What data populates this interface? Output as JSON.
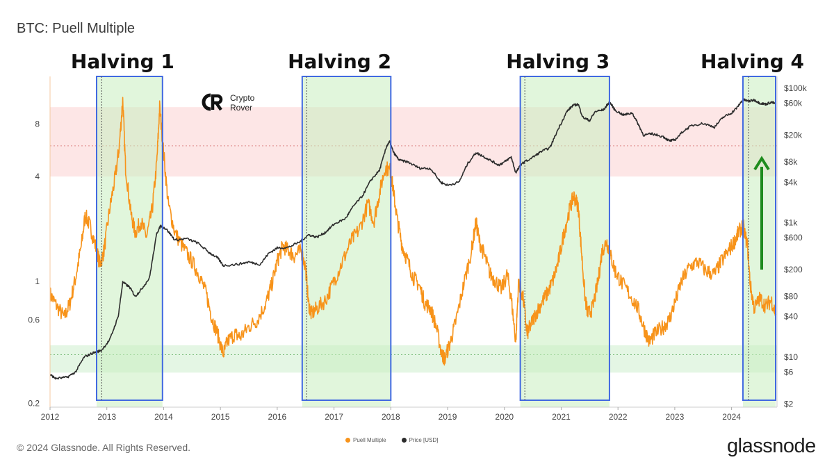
{
  "header": {
    "title": "BTC: Puell Multiple"
  },
  "footer": {
    "copyright": "© 2024 Glassnode. All Rights Reserved.",
    "brand": "glassnode"
  },
  "watermark": {
    "line1": "Crypto",
    "line2": "Rover"
  },
  "colors": {
    "puell": "#f7931a",
    "price": "#2b2b2b",
    "halving_box": "#4169e1",
    "green_zone": "#dff5df",
    "red_zone": "#fde2e2",
    "arrow": "#1e8c1e"
  },
  "chart_data": {
    "type": "line",
    "title": "BTC: Puell Multiple",
    "x_ticks": [
      "2012",
      "2013",
      "2014",
      "2015",
      "2016",
      "2017",
      "2018",
      "2019",
      "2020",
      "2021",
      "2022",
      "2023",
      "2024"
    ],
    "y_left_scale": "log",
    "y_left_ticks": [
      "0.2",
      "0.6",
      "1",
      "4",
      "8"
    ],
    "y_left_tick_values": [
      0.2,
      0.6,
      1,
      4,
      8
    ],
    "y_left_range": [
      0.19,
      15
    ],
    "y_right_scale": "log",
    "y_right_ticks": [
      "$2",
      "$6",
      "$10",
      "$40",
      "$80",
      "$200",
      "$600",
      "$1k",
      "$4k",
      "$8k",
      "$20k",
      "$60k",
      "$100k"
    ],
    "y_right_tick_values": [
      2,
      6,
      10,
      40,
      80,
      200,
      600,
      1000,
      4000,
      8000,
      20000,
      60000,
      100000
    ],
    "y_right_range": [
      1.8,
      150000
    ],
    "x_range": [
      2012.0,
      2024.8
    ],
    "legend": [
      "Puell Multiple",
      "Price [USD]"
    ],
    "legend_position": "bottom-center",
    "bands": [
      {
        "zone": "red",
        "from": 4,
        "to": 10,
        "midline": 6
      },
      {
        "zone": "green",
        "from": 0.3,
        "to": 0.43,
        "midline": 0.38
      }
    ],
    "halvings": [
      {
        "label": "Halving 1",
        "date": 2012.91,
        "box": [
          2012.82,
          2013.98
        ]
      },
      {
        "label": "Halving 2",
        "date": 2016.52,
        "box": [
          2016.44,
          2018.0
        ]
      },
      {
        "label": "Halving 3",
        "date": 2020.36,
        "box": [
          2020.28,
          2021.85
        ]
      },
      {
        "label": "Halving 4",
        "date": 2024.3,
        "box": [
          2024.2,
          2024.8
        ]
      }
    ],
    "series": [
      {
        "name": "Puell Multiple",
        "axis": "left",
        "points": [
          [
            2012.0,
            0.85
          ],
          [
            2012.12,
            0.72
          ],
          [
            2012.25,
            0.62
          ],
          [
            2012.35,
            0.75
          ],
          [
            2012.45,
            1.05
          ],
          [
            2012.55,
            1.6
          ],
          [
            2012.62,
            2.4
          ],
          [
            2012.7,
            2.1
          ],
          [
            2012.8,
            1.6
          ],
          [
            2012.88,
            1.25
          ],
          [
            2012.95,
            1.5
          ],
          [
            2013.05,
            2.6
          ],
          [
            2013.15,
            4.0
          ],
          [
            2013.22,
            6.0
          ],
          [
            2013.28,
            11.0
          ],
          [
            2013.33,
            4.5
          ],
          [
            2013.42,
            2.5
          ],
          [
            2013.5,
            1.9
          ],
          [
            2013.6,
            2.2
          ],
          [
            2013.7,
            1.8
          ],
          [
            2013.8,
            2.6
          ],
          [
            2013.88,
            4.8
          ],
          [
            2013.93,
            10.0
          ],
          [
            2014.0,
            5.5
          ],
          [
            2014.08,
            2.8
          ],
          [
            2014.2,
            1.9
          ],
          [
            2014.35,
            1.55
          ],
          [
            2014.5,
            1.3
          ],
          [
            2014.62,
            1.1
          ],
          [
            2014.75,
            0.85
          ],
          [
            2014.85,
            0.62
          ],
          [
            2014.95,
            0.5
          ],
          [
            2015.05,
            0.38
          ],
          [
            2015.12,
            0.45
          ],
          [
            2015.25,
            0.5
          ],
          [
            2015.35,
            0.48
          ],
          [
            2015.5,
            0.55
          ],
          [
            2015.65,
            0.6
          ],
          [
            2015.8,
            0.75
          ],
          [
            2015.9,
            0.95
          ],
          [
            2016.0,
            1.3
          ],
          [
            2016.1,
            1.6
          ],
          [
            2016.2,
            1.5
          ],
          [
            2016.3,
            1.4
          ],
          [
            2016.42,
            1.5
          ],
          [
            2016.5,
            1.2
          ],
          [
            2016.55,
            0.75
          ],
          [
            2016.6,
            0.65
          ],
          [
            2016.7,
            0.7
          ],
          [
            2016.85,
            0.78
          ],
          [
            2017.0,
            1.0
          ],
          [
            2017.15,
            1.3
          ],
          [
            2017.3,
            1.7
          ],
          [
            2017.45,
            2.0
          ],
          [
            2017.6,
            2.8
          ],
          [
            2017.7,
            2.2
          ],
          [
            2017.8,
            3.2
          ],
          [
            2017.9,
            4.5
          ],
          [
            2018.0,
            4.3
          ],
          [
            2018.05,
            3.2
          ],
          [
            2018.12,
            2.2
          ],
          [
            2018.2,
            1.6
          ],
          [
            2018.3,
            1.3
          ],
          [
            2018.4,
            1.05
          ],
          [
            2018.5,
            0.95
          ],
          [
            2018.6,
            0.75
          ],
          [
            2018.7,
            0.7
          ],
          [
            2018.8,
            0.55
          ],
          [
            2018.9,
            0.38
          ],
          [
            2018.95,
            0.36
          ],
          [
            2019.05,
            0.45
          ],
          [
            2019.15,
            0.6
          ],
          [
            2019.28,
            0.95
          ],
          [
            2019.42,
            1.5
          ],
          [
            2019.5,
            2.2
          ],
          [
            2019.56,
            1.7
          ],
          [
            2019.65,
            1.4
          ],
          [
            2019.75,
            1.1
          ],
          [
            2019.85,
            1.0
          ],
          [
            2019.95,
            0.9
          ],
          [
            2020.05,
            1.1
          ],
          [
            2020.12,
            0.8
          ],
          [
            2020.2,
            0.45
          ],
          [
            2020.25,
            1.0
          ],
          [
            2020.33,
            0.8
          ],
          [
            2020.4,
            0.5
          ],
          [
            2020.45,
            0.55
          ],
          [
            2020.55,
            0.65
          ],
          [
            2020.65,
            0.75
          ],
          [
            2020.75,
            0.85
          ],
          [
            2020.85,
            1.0
          ],
          [
            2020.95,
            1.3
          ],
          [
            2021.05,
            1.9
          ],
          [
            2021.15,
            2.6
          ],
          [
            2021.22,
            3.1
          ],
          [
            2021.3,
            2.7
          ],
          [
            2021.35,
            1.6
          ],
          [
            2021.42,
            0.8
          ],
          [
            2021.47,
            0.65
          ],
          [
            2021.55,
            0.7
          ],
          [
            2021.65,
            1.0
          ],
          [
            2021.72,
            1.5
          ],
          [
            2021.8,
            1.7
          ],
          [
            2021.87,
            1.4
          ],
          [
            2021.95,
            1.15
          ],
          [
            2022.05,
            1.0
          ],
          [
            2022.2,
            0.85
          ],
          [
            2022.35,
            0.7
          ],
          [
            2022.45,
            0.55
          ],
          [
            2022.55,
            0.45
          ],
          [
            2022.65,
            0.5
          ],
          [
            2022.8,
            0.55
          ],
          [
            2022.9,
            0.6
          ],
          [
            2023.0,
            0.75
          ],
          [
            2023.12,
            1.0
          ],
          [
            2023.25,
            1.2
          ],
          [
            2023.4,
            1.3
          ],
          [
            2023.55,
            1.15
          ],
          [
            2023.7,
            1.1
          ],
          [
            2023.82,
            1.3
          ],
          [
            2023.95,
            1.5
          ],
          [
            2024.05,
            1.7
          ],
          [
            2024.12,
            1.9
          ],
          [
            2024.2,
            2.1
          ],
          [
            2024.28,
            1.6
          ],
          [
            2024.33,
            0.95
          ],
          [
            2024.4,
            0.7
          ],
          [
            2024.5,
            0.8
          ],
          [
            2024.6,
            0.72
          ],
          [
            2024.7,
            0.78
          ],
          [
            2024.78,
            0.65
          ]
        ]
      },
      {
        "name": "Price [USD]",
        "axis": "right",
        "points": [
          [
            2012.0,
            5.5
          ],
          [
            2012.1,
            4.8
          ],
          [
            2012.3,
            5.0
          ],
          [
            2012.45,
            6.0
          ],
          [
            2012.6,
            10.0
          ],
          [
            2012.75,
            11.5
          ],
          [
            2012.9,
            12.5
          ],
          [
            2013.05,
            18
          ],
          [
            2013.2,
            40
          ],
          [
            2013.28,
            130
          ],
          [
            2013.4,
            110
          ],
          [
            2013.5,
            80
          ],
          [
            2013.6,
            100
          ],
          [
            2013.75,
            150
          ],
          [
            2013.88,
            700
          ],
          [
            2013.95,
            900
          ],
          [
            2014.05,
            800
          ],
          [
            2014.2,
            550
          ],
          [
            2014.4,
            580
          ],
          [
            2014.6,
            500
          ],
          [
            2014.8,
            360
          ],
          [
            2014.95,
            300
          ],
          [
            2015.05,
            230
          ],
          [
            2015.3,
            240
          ],
          [
            2015.5,
            260
          ],
          [
            2015.7,
            240
          ],
          [
            2015.85,
            350
          ],
          [
            2016.0,
            420
          ],
          [
            2016.2,
            430
          ],
          [
            2016.4,
            520
          ],
          [
            2016.55,
            660
          ],
          [
            2016.7,
            610
          ],
          [
            2016.85,
            720
          ],
          [
            2017.0,
            950
          ],
          [
            2017.2,
            1150
          ],
          [
            2017.35,
            1800
          ],
          [
            2017.5,
            2500
          ],
          [
            2017.65,
            4300
          ],
          [
            2017.8,
            6000
          ],
          [
            2017.93,
            14000
          ],
          [
            2017.98,
            16000
          ],
          [
            2018.05,
            11000
          ],
          [
            2018.15,
            8500
          ],
          [
            2018.3,
            8000
          ],
          [
            2018.5,
            6500
          ],
          [
            2018.7,
            6400
          ],
          [
            2018.88,
            4000
          ],
          [
            2019.0,
            3600
          ],
          [
            2019.2,
            4000
          ],
          [
            2019.35,
            7500
          ],
          [
            2019.5,
            11000
          ],
          [
            2019.6,
            10000
          ],
          [
            2019.75,
            8500
          ],
          [
            2019.9,
            7200
          ],
          [
            2020.0,
            8000
          ],
          [
            2020.12,
            9500
          ],
          [
            2020.2,
            5500
          ],
          [
            2020.3,
            7500
          ],
          [
            2020.5,
            9400
          ],
          [
            2020.65,
            11500
          ],
          [
            2020.8,
            13000
          ],
          [
            2020.95,
            25000
          ],
          [
            2021.1,
            45000
          ],
          [
            2021.2,
            55000
          ],
          [
            2021.3,
            58000
          ],
          [
            2021.38,
            37000
          ],
          [
            2021.5,
            33000
          ],
          [
            2021.6,
            45000
          ],
          [
            2021.75,
            48000
          ],
          [
            2021.85,
            63000
          ],
          [
            2021.95,
            47000
          ],
          [
            2022.1,
            40000
          ],
          [
            2022.25,
            43000
          ],
          [
            2022.35,
            30000
          ],
          [
            2022.45,
            20000
          ],
          [
            2022.6,
            21000
          ],
          [
            2022.8,
            19000
          ],
          [
            2022.9,
            16500
          ],
          [
            2023.0,
            17000
          ],
          [
            2023.15,
            23000
          ],
          [
            2023.3,
            28000
          ],
          [
            2023.5,
            30000
          ],
          [
            2023.7,
            26500
          ],
          [
            2023.85,
            37000
          ],
          [
            2024.0,
            43000
          ],
          [
            2024.1,
            52000
          ],
          [
            2024.2,
            68000
          ],
          [
            2024.3,
            64000
          ],
          [
            2024.4,
            67000
          ],
          [
            2024.5,
            60000
          ],
          [
            2024.6,
            58000
          ],
          [
            2024.7,
            62000
          ],
          [
            2024.78,
            59000
          ]
        ]
      }
    ]
  }
}
